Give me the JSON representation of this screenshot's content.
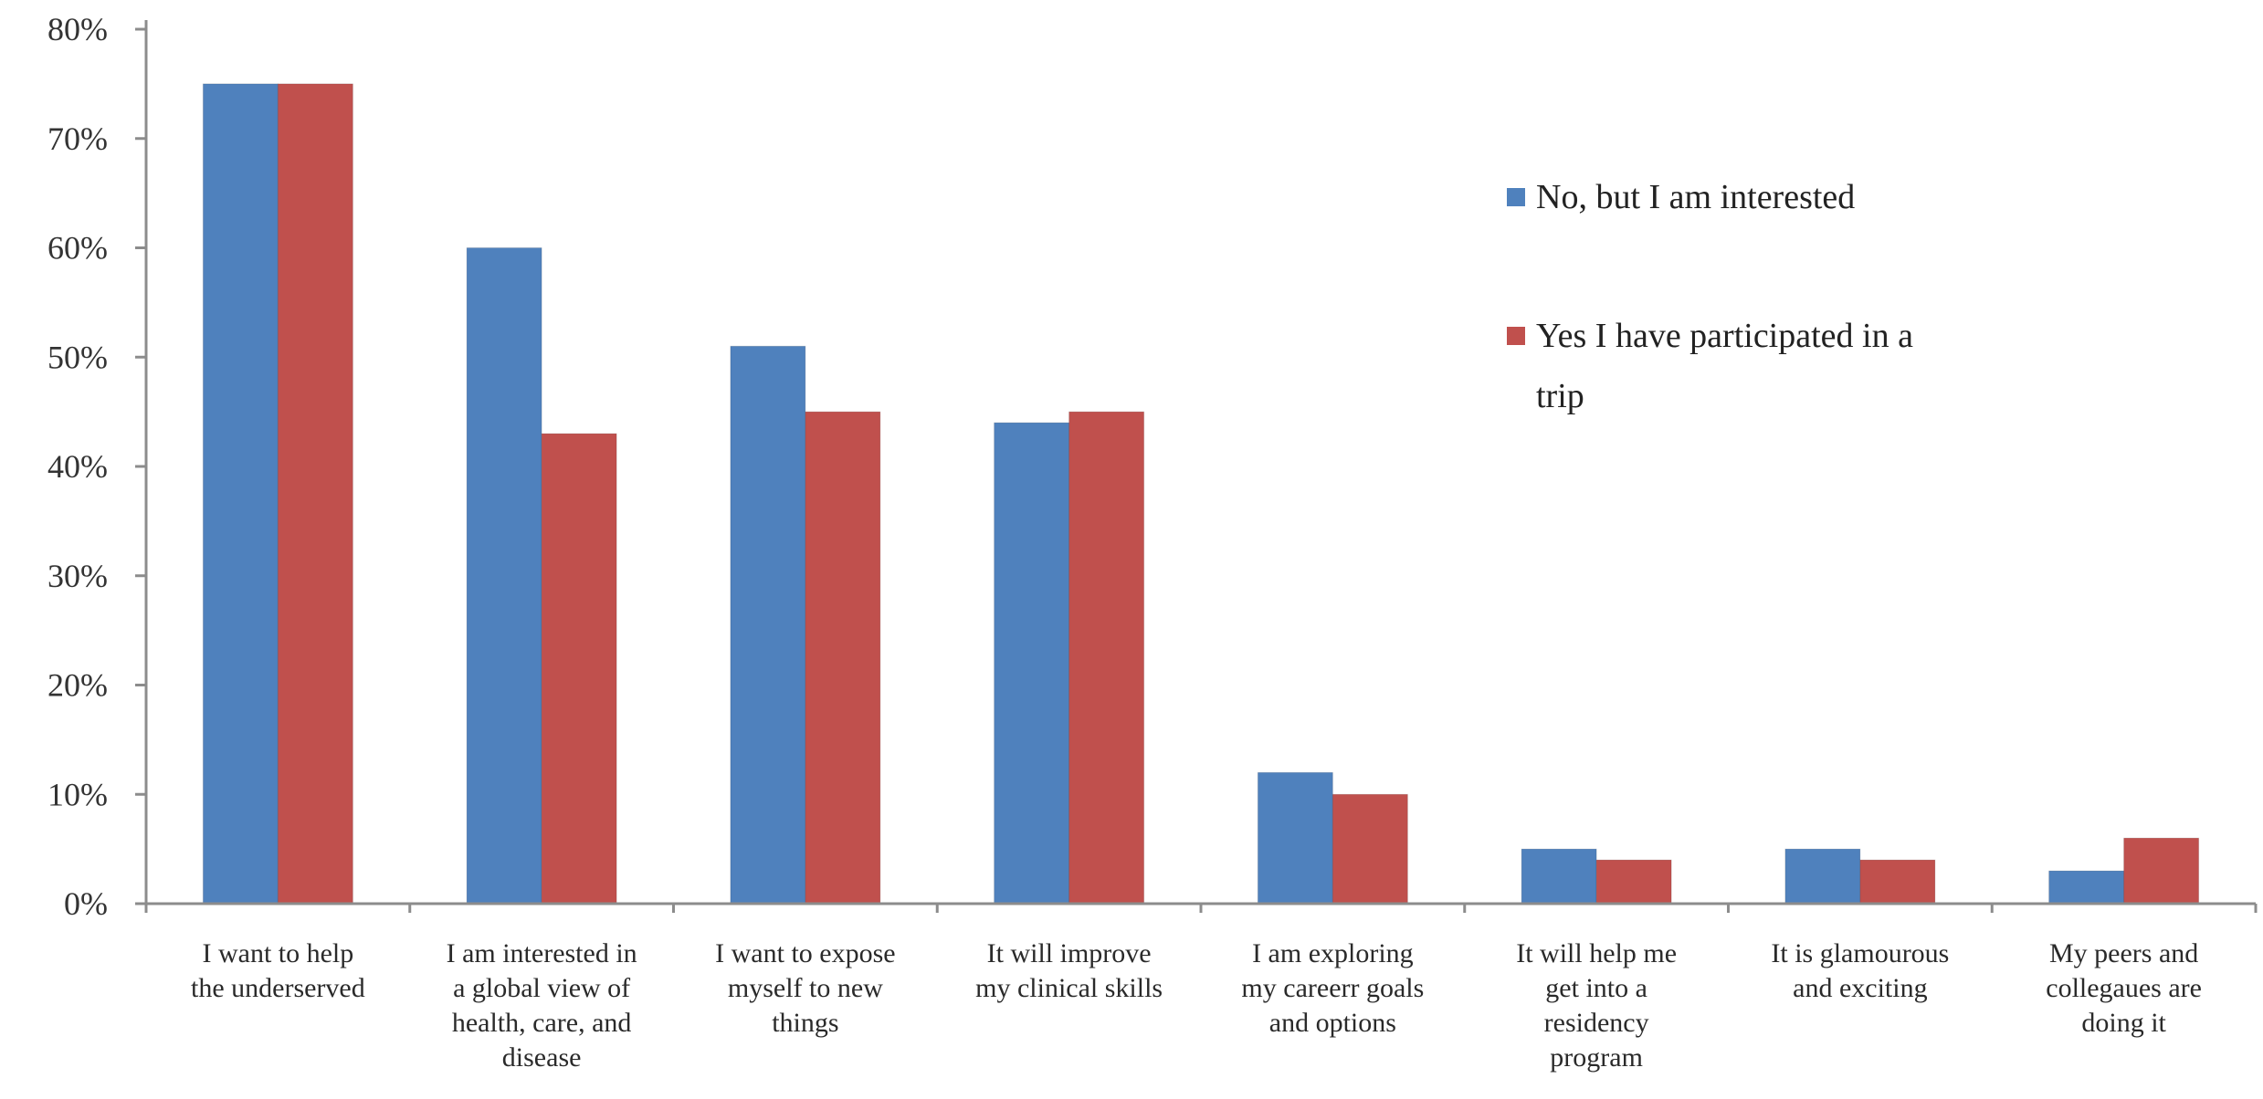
{
  "chart_data": {
    "type": "bar",
    "title": "",
    "xlabel": "",
    "ylabel": "",
    "ylim": [
      0,
      80
    ],
    "yticks": [
      "0%",
      "10%",
      "20%",
      "30%",
      "40%",
      "50%",
      "60%",
      "70%",
      "80%"
    ],
    "grid": false,
    "legend_position": "right",
    "categories": [
      [
        "I want to help",
        "the underserved"
      ],
      [
        "I am interested in",
        "a global view of",
        "health, care, and",
        "disease"
      ],
      [
        "I want to expose",
        "myself  to new",
        "things"
      ],
      [
        "It will improve",
        "my clinical skills"
      ],
      [
        "I am exploring",
        "my careerr goals",
        "and options"
      ],
      [
        "It will help me",
        "get into a",
        "residency",
        "program"
      ],
      [
        "It is glamourous",
        "and exciting"
      ],
      [
        "My peers and",
        "collegaues are",
        "doing it"
      ]
    ],
    "series": [
      {
        "name": "No, but I am interested",
        "color": "#4f81bd",
        "values": [
          75,
          60,
          51,
          44,
          12,
          5,
          5,
          3
        ]
      },
      {
        "name": "Yes I have participated in a trip",
        "legend_lines": [
          "Yes I have participated in a",
          "trip"
        ],
        "color": "#c0504d",
        "values": [
          75,
          43,
          45,
          45,
          10,
          4,
          4,
          6
        ]
      }
    ]
  }
}
